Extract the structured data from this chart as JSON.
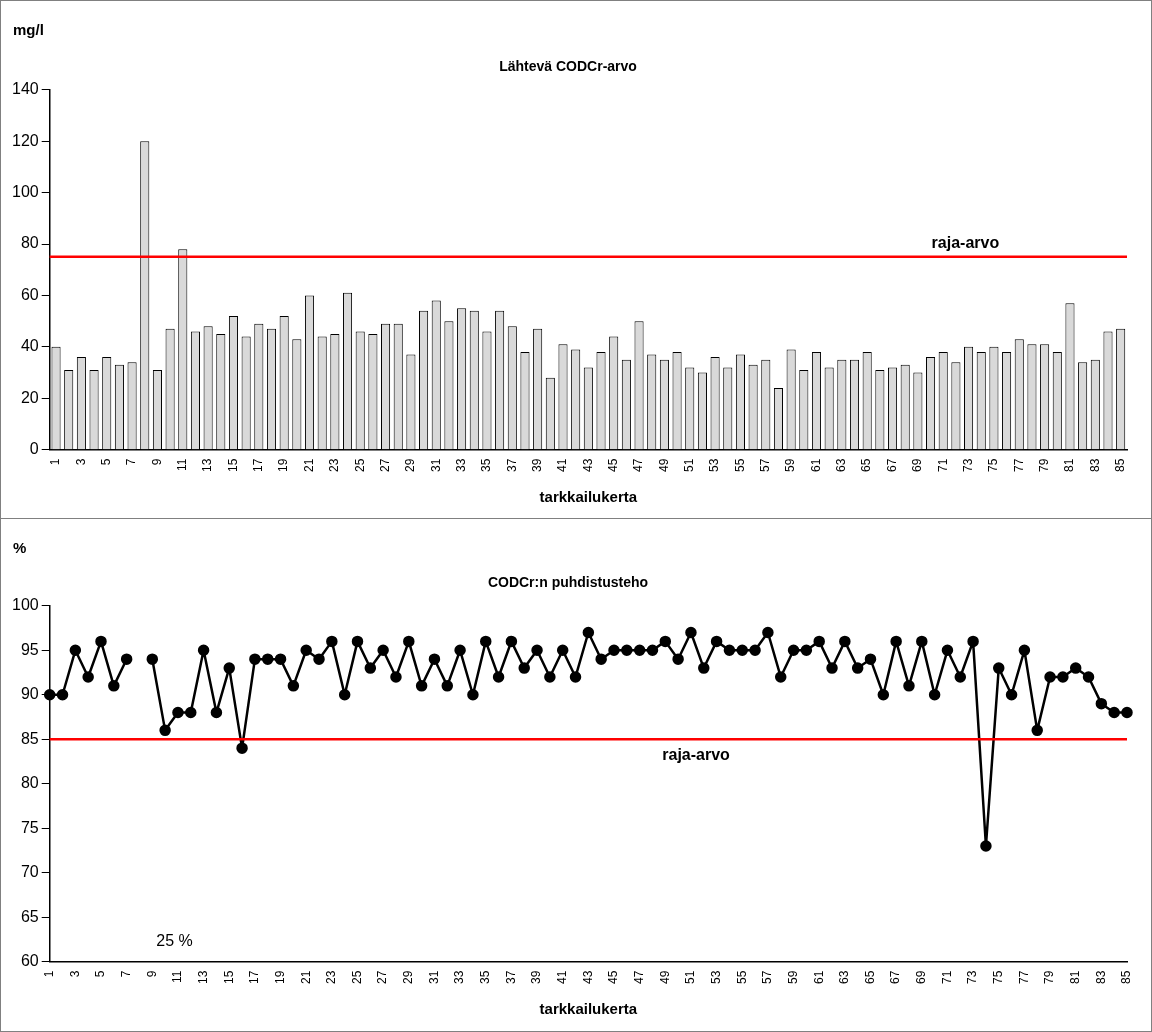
{
  "chart_data": [
    {
      "type": "bar",
      "title": "Lähtevä CODCr-arvo",
      "ylabel": "mg/l",
      "xlabel": "tarkkailukerta",
      "categories": [
        "1",
        null,
        "3",
        null,
        "5",
        null,
        "7",
        null,
        "9",
        null,
        "11",
        null,
        "13",
        null,
        "15",
        null,
        "17",
        null,
        "19",
        null,
        "21",
        null,
        "23",
        null,
        "25",
        null,
        "27",
        null,
        "29",
        null,
        "31",
        null,
        "33",
        null,
        "35",
        null,
        "37",
        null,
        "39",
        null,
        "41",
        null,
        "43",
        null,
        "45",
        null,
        "47",
        null,
        "49",
        null,
        "51",
        null,
        "53",
        null,
        "55",
        null,
        "57",
        null,
        "59",
        null,
        "61",
        null,
        "63",
        null,
        "65",
        null,
        "67",
        null,
        "69",
        null,
        "71",
        null,
        "73",
        null,
        "75",
        null,
        "77",
        null,
        "79",
        null,
        "81",
        null,
        "83",
        null,
        "85"
      ],
      "values": [
        40,
        31,
        36,
        31,
        36,
        33,
        34,
        120,
        31,
        47,
        78,
        46,
        48,
        45,
        52,
        44,
        49,
        47,
        52,
        43,
        60,
        44,
        45,
        61,
        46,
        45,
        49,
        49,
        37,
        54,
        58,
        50,
        55,
        54,
        46,
        54,
        48,
        38,
        47,
        28,
        41,
        39,
        32,
        38,
        44,
        35,
        50,
        37,
        35,
        38,
        32,
        30,
        36,
        32,
        37,
        33,
        35,
        24,
        39,
        31,
        38,
        32,
        35,
        35,
        38,
        31,
        32,
        33,
        30,
        36,
        38,
        34,
        40,
        38,
        40,
        38,
        43,
        41,
        41,
        38,
        57,
        34,
        35,
        46,
        47
      ],
      "color": "#d9d9d9",
      "ylim": [
        0,
        140
      ],
      "yticks": [
        0,
        20,
        40,
        60,
        80,
        100,
        120,
        140
      ],
      "grid": false,
      "legend": false,
      "ref_lines": [
        {
          "axis": "y",
          "value": 75,
          "label": "raja-arvo",
          "color": "#ff0000"
        }
      ]
    },
    {
      "type": "line",
      "title": "CODCr:n puhdistusteho",
      "ylabel": "%",
      "xlabel": "tarkkailukerta",
      "categories": [
        "1",
        null,
        "3",
        null,
        "5",
        null,
        "7",
        null,
        "9",
        null,
        "11",
        null,
        "13",
        null,
        "15",
        null,
        "17",
        null,
        "19",
        null,
        "21",
        null,
        "23",
        null,
        "25",
        null,
        "27",
        null,
        "29",
        null,
        "31",
        null,
        "33",
        null,
        "35",
        null,
        "37",
        null,
        "39",
        null,
        "41",
        null,
        "43",
        null,
        "45",
        null,
        "47",
        null,
        "49",
        null,
        "51",
        null,
        "53",
        null,
        "55",
        null,
        "57",
        null,
        "59",
        null,
        "61",
        null,
        "63",
        null,
        "65",
        null,
        "67",
        null,
        "69",
        null,
        "71",
        null,
        "73",
        null,
        "75",
        null,
        "77",
        null,
        "79",
        null,
        "81",
        null,
        "83",
        null,
        "85"
      ],
      "values": [
        90,
        90,
        95,
        92,
        96,
        91,
        94,
        null,
        94,
        86,
        88,
        88,
        95,
        88,
        93,
        84,
        94,
        94,
        94,
        91,
        95,
        94,
        96,
        90,
        96,
        93,
        95,
        92,
        96,
        91,
        94,
        91,
        95,
        90,
        96,
        92,
        96,
        93,
        95,
        92,
        95,
        92,
        97,
        94,
        95,
        95,
        95,
        95,
        96,
        94,
        97,
        93,
        96,
        95,
        95,
        95,
        97,
        92,
        95,
        95,
        96,
        93,
        96,
        93,
        94,
        90,
        96,
        91,
        96,
        90,
        95,
        92,
        96,
        73,
        93,
        90,
        95,
        86,
        92,
        92,
        93,
        92,
        89,
        88,
        88
      ],
      "color": "#000000",
      "marker": "circle",
      "line_style": "solid",
      "ylim": [
        60,
        100
      ],
      "yticks": [
        60,
        65,
        70,
        75,
        80,
        85,
        90,
        95,
        100
      ],
      "grid": false,
      "legend": false,
      "ref_lines": [
        {
          "axis": "y",
          "value": 85,
          "label": "raja-arvo",
          "color": "#ff0000"
        }
      ],
      "annotations": [
        "25 %"
      ]
    }
  ]
}
